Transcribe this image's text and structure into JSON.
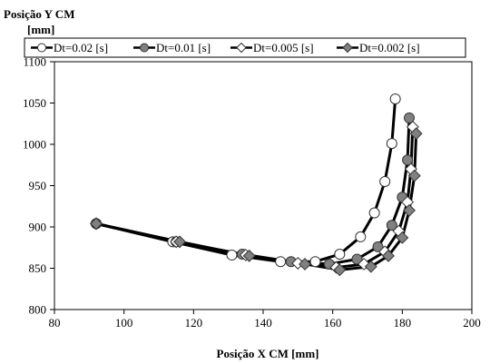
{
  "chart_data": {
    "type": "line",
    "ylabel_line1": "Posição Y CM",
    "ylabel_line2": "[mm]",
    "xlabel": "Posição X CM [mm]",
    "xlim": [
      80,
      200
    ],
    "ylim": [
      800,
      1100
    ],
    "x_ticks": [
      80,
      100,
      120,
      140,
      160,
      180,
      200
    ],
    "y_ticks": [
      800,
      850,
      900,
      950,
      1000,
      1050,
      1100
    ],
    "grid": false,
    "legend_position": "top",
    "series": [
      {
        "name": "Dt=0.02 [s]",
        "marker": "circle",
        "marker_fill": "#ffffff",
        "line_color": "#000000",
        "points": [
          [
            92,
            904
          ],
          [
            114,
            882
          ],
          [
            131,
            866
          ],
          [
            145,
            858
          ],
          [
            155,
            858
          ],
          [
            162,
            867
          ],
          [
            168,
            888
          ],
          [
            172,
            917
          ],
          [
            175,
            955
          ],
          [
            177,
            1001
          ],
          [
            178,
            1055
          ]
        ]
      },
      {
        "name": "Dt=0.01 [s]",
        "marker": "circle",
        "marker_fill": "#808080",
        "line_color": "#000000",
        "points": [
          [
            92,
            904
          ],
          [
            115,
            882
          ],
          [
            134,
            867
          ],
          [
            148,
            858
          ],
          [
            159,
            855
          ],
          [
            167,
            861
          ],
          [
            173,
            876
          ],
          [
            177,
            902
          ],
          [
            180,
            936
          ],
          [
            181.5,
            981
          ],
          [
            182,
            1032
          ]
        ]
      },
      {
        "name": "Dt=0.005 [s]",
        "marker": "diamond",
        "marker_fill": "#ffffff",
        "line_color": "#000000",
        "points": [
          [
            92,
            904
          ],
          [
            115,
            882
          ],
          [
            135,
            866
          ],
          [
            150,
            856
          ],
          [
            161,
            851
          ],
          [
            169,
            855
          ],
          [
            175,
            870
          ],
          [
            179,
            895
          ],
          [
            181.5,
            930
          ],
          [
            182.5,
            970
          ],
          [
            183,
            1021
          ]
        ]
      },
      {
        "name": "Dt=0.002 [s]",
        "marker": "diamond",
        "marker_fill": "#808080",
        "line_color": "#000000",
        "points": [
          [
            92,
            904
          ],
          [
            116,
            882
          ],
          [
            136,
            865
          ],
          [
            152,
            855
          ],
          [
            162,
            848
          ],
          [
            171,
            852
          ],
          [
            176,
            865
          ],
          [
            180,
            887
          ],
          [
            182,
            920
          ],
          [
            183.5,
            962
          ],
          [
            184,
            1013
          ]
        ]
      }
    ]
  }
}
